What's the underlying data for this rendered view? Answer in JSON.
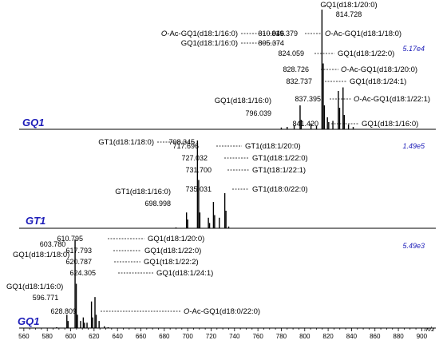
{
  "chart_data": {
    "type": "line",
    "x_axis": {
      "min": 556,
      "max": 912,
      "ticks": [
        560,
        580,
        600,
        620,
        640,
        660,
        680,
        700,
        720,
        740,
        760,
        780,
        800,
        820,
        840,
        860,
        880,
        900
      ],
      "label": "m/z"
    },
    "panels": [
      {
        "label": "GQ1",
        "intensity": "5.17e4",
        "peaks": [
          {
            "mz": 780.0,
            "rel": 0.015
          },
          {
            "mz": 785.0,
            "rel": 0.02
          },
          {
            "mz": 791.0,
            "rel": 0.035
          },
          {
            "mz": 796.039,
            "rel": 0.2
          },
          {
            "mz": 797.0,
            "rel": 0.08
          },
          {
            "mz": 805.374,
            "rel": 0.05
          },
          {
            "mz": 810.046,
            "rel": 0.03
          },
          {
            "mz": 814.728,
            "rel": 1.0
          },
          {
            "mz": 815.8,
            "rel": 0.55
          },
          {
            "mz": 816.8,
            "rel": 0.2
          },
          {
            "mz": 819.379,
            "rel": 0.1
          },
          {
            "mz": 820.5,
            "rel": 0.06
          },
          {
            "mz": 824.059,
            "rel": 0.07
          },
          {
            "mz": 828.726,
            "rel": 0.32
          },
          {
            "mz": 829.8,
            "rel": 0.18
          },
          {
            "mz": 832.737,
            "rel": 0.35
          },
          {
            "mz": 833.8,
            "rel": 0.12
          },
          {
            "mz": 837.395,
            "rel": 0.04
          },
          {
            "mz": 841.42,
            "rel": 0.02
          }
        ],
        "annotations": [
          {
            "id": "p1-a1",
            "name": "GQ1(d18:1/20:0)",
            "mz_text": "814.728",
            "mz": 814.728
          },
          {
            "id": "p1-a2",
            "name": "O-Ac-GQ1(d18:1/16:0)",
            "mz_text": "810.046",
            "mz": 810.046
          },
          {
            "id": "p1-a3",
            "name": "O-Ac-GQ1(d18:1/18:0)",
            "mz_text": "819.379",
            "mz": 819.379
          },
          {
            "id": "p1-a4",
            "name": "GQ1(d18:1/16:0)",
            "mz_text": "805.374",
            "mz": 805.374
          },
          {
            "id": "p1-a5",
            "name": "GQ1(d18:1/22:0)",
            "mz_text": "824.059",
            "mz": 824.059
          },
          {
            "id": "p1-a6",
            "name": "O-Ac-GQ1(d18:1/20:0)",
            "mz_text": "828.726",
            "mz": 828.726
          },
          {
            "id": "p1-a7",
            "name": "GQ1(d18:1/24:1)",
            "mz_text": "832.737",
            "mz": 832.737
          },
          {
            "id": "p1-a8",
            "name": "O-Ac-GQ1(d18:1/22:1)",
            "mz_text": "837.395",
            "mz": 837.395
          },
          {
            "id": "p1-a9",
            "name": "GQ1(d18:1/16:0)",
            "mz_text": "796.039",
            "mz": 796.039
          },
          {
            "id": "p1-a10",
            "name": "GQ1(d18:1/16:0)",
            "mz_text": "841.420",
            "mz": 841.42
          }
        ]
      },
      {
        "label": "GT1",
        "intensity": "1.49e5",
        "peaks": [
          {
            "mz": 690.0,
            "rel": 0.01
          },
          {
            "mz": 698.998,
            "rel": 0.18
          },
          {
            "mz": 700.0,
            "rel": 0.1
          },
          {
            "mz": 708.345,
            "rel": 1.0
          },
          {
            "mz": 709.4,
            "rel": 0.55
          },
          {
            "mz": 710.4,
            "rel": 0.18
          },
          {
            "mz": 717.696,
            "rel": 0.12
          },
          {
            "mz": 718.7,
            "rel": 0.06
          },
          {
            "mz": 722.0,
            "rel": 0.3
          },
          {
            "mz": 723.0,
            "rel": 0.15
          },
          {
            "mz": 727.032,
            "rel": 0.12
          },
          {
            "mz": 731.7,
            "rel": 0.4
          },
          {
            "mz": 732.7,
            "rel": 0.2
          },
          {
            "mz": 735.031,
            "rel": 0.02
          }
        ],
        "annotations": [
          {
            "id": "p2-a1",
            "name": "GT1(d18:1/18:0)",
            "mz_text": "708.345",
            "mz": 708.345
          },
          {
            "id": "p2-a2",
            "name": "GT1(d18:1/20:0)",
            "mz_text": "717.696",
            "mz": 717.696
          },
          {
            "id": "p2-a3",
            "name": "GT1(d18:1/22:0)",
            "mz_text": "727.032",
            "mz": 727.032
          },
          {
            "id": "p2-a4",
            "name": "GT1(t18:1/22:1)",
            "mz_text": "731.700",
            "mz": 731.7
          },
          {
            "id": "p2-a5",
            "name": "GT1(d18:0/22:0)",
            "mz_text": "735.031",
            "mz": 735.031
          },
          {
            "id": "p2-a6",
            "name": "GT1(d18:1/16:0)",
            "mz_text": "698.998",
            "mz": 698.998
          }
        ]
      },
      {
        "label": "GQ1",
        "intensity": "5.49e3",
        "peaks": [
          {
            "mz": 588.0,
            "rel": 0.01
          },
          {
            "mz": 596.771,
            "rel": 0.15
          },
          {
            "mz": 597.8,
            "rel": 0.08
          },
          {
            "mz": 603.78,
            "rel": 1.0
          },
          {
            "mz": 604.8,
            "rel": 0.5
          },
          {
            "mz": 605.8,
            "rel": 0.15
          },
          {
            "mz": 608.5,
            "rel": 0.08
          },
          {
            "mz": 610.795,
            "rel": 0.12
          },
          {
            "mz": 611.8,
            "rel": 0.06
          },
          {
            "mz": 614.0,
            "rel": 0.06
          },
          {
            "mz": 617.793,
            "rel": 0.3
          },
          {
            "mz": 618.8,
            "rel": 0.12
          },
          {
            "mz": 620.787,
            "rel": 0.35
          },
          {
            "mz": 621.8,
            "rel": 0.15
          },
          {
            "mz": 624.305,
            "rel": 0.08
          },
          {
            "mz": 628.809,
            "rel": 0.02
          },
          {
            "mz": 632.0,
            "rel": 0.01
          }
        ],
        "annotations": [
          {
            "id": "p3-a1",
            "name": "GQ1(d18:1/18:0)",
            "mz_text": "603.780",
            "mz": 603.78
          },
          {
            "id": "p3-a2",
            "name": "GQ1(d18:1/20:0)",
            "mz_text": "610.795",
            "mz": 610.795
          },
          {
            "id": "p3-a3",
            "name": "GQ1(d18:1/22:0)",
            "mz_text": "617.793",
            "mz": 617.793
          },
          {
            "id": "p3-a4",
            "name": "GQ1(t18:1/22:2)",
            "mz_text": "620.787",
            "mz": 620.787
          },
          {
            "id": "p3-a5",
            "name": "GQ1(d18:1/24:1)",
            "mz_text": "624.305",
            "mz": 624.305
          },
          {
            "id": "p3-a6",
            "name": "GQ1(d18:1/16:0)",
            "mz_text": "596.771",
            "mz": 596.771
          },
          {
            "id": "p3-a7",
            "name": "O-Ac-GQ1(d18:0/22:0)",
            "mz_text": "628.809",
            "mz": 628.809
          }
        ]
      }
    ]
  }
}
